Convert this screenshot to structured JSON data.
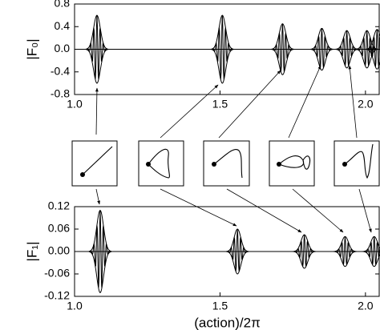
{
  "chart_data": [
    {
      "type": "line",
      "y_label": "|F₀|",
      "color": "#000000",
      "xlim": [
        1.0,
        2.05
      ],
      "xticks": [
        {
          "value": 1.0,
          "label": "1.0"
        },
        1.5,
        {
          "value": 2.0,
          "label": "2.0"
        }
      ],
      "ylim": [
        -0.8,
        0.8
      ],
      "yticks": [
        0.8,
        0.4,
        {
          "value": 0.0,
          "label": "0.0"
        },
        -0.4,
        -0.8
      ],
      "x": [
        1.077,
        1.508,
        1.715,
        1.85,
        1.936,
        2.005,
        2.04
      ],
      "values": [
        0.6,
        0.6,
        0.45,
        0.37,
        0.33,
        0.33,
        0.35
      ]
    },
    {
      "type": "line",
      "y_label": "|F₁|",
      "x_label": "(action)/2π",
      "color": "#000000",
      "xlim": [
        1.0,
        2.05
      ],
      "xticks": [
        {
          "value": 1.0,
          "label": "1.0"
        },
        1.5,
        {
          "value": 2.0,
          "label": "2.0"
        }
      ],
      "ylim": [
        -0.12,
        0.12
      ],
      "yticks": [
        0.12,
        0.06,
        {
          "value": 0.0,
          "label": "0.00"
        },
        -0.06,
        -0.12
      ],
      "x": [
        1.088,
        1.56,
        1.79,
        1.93,
        2.03
      ],
      "values": [
        0.11,
        0.06,
        0.045,
        0.04,
        0.04
      ]
    }
  ]
}
